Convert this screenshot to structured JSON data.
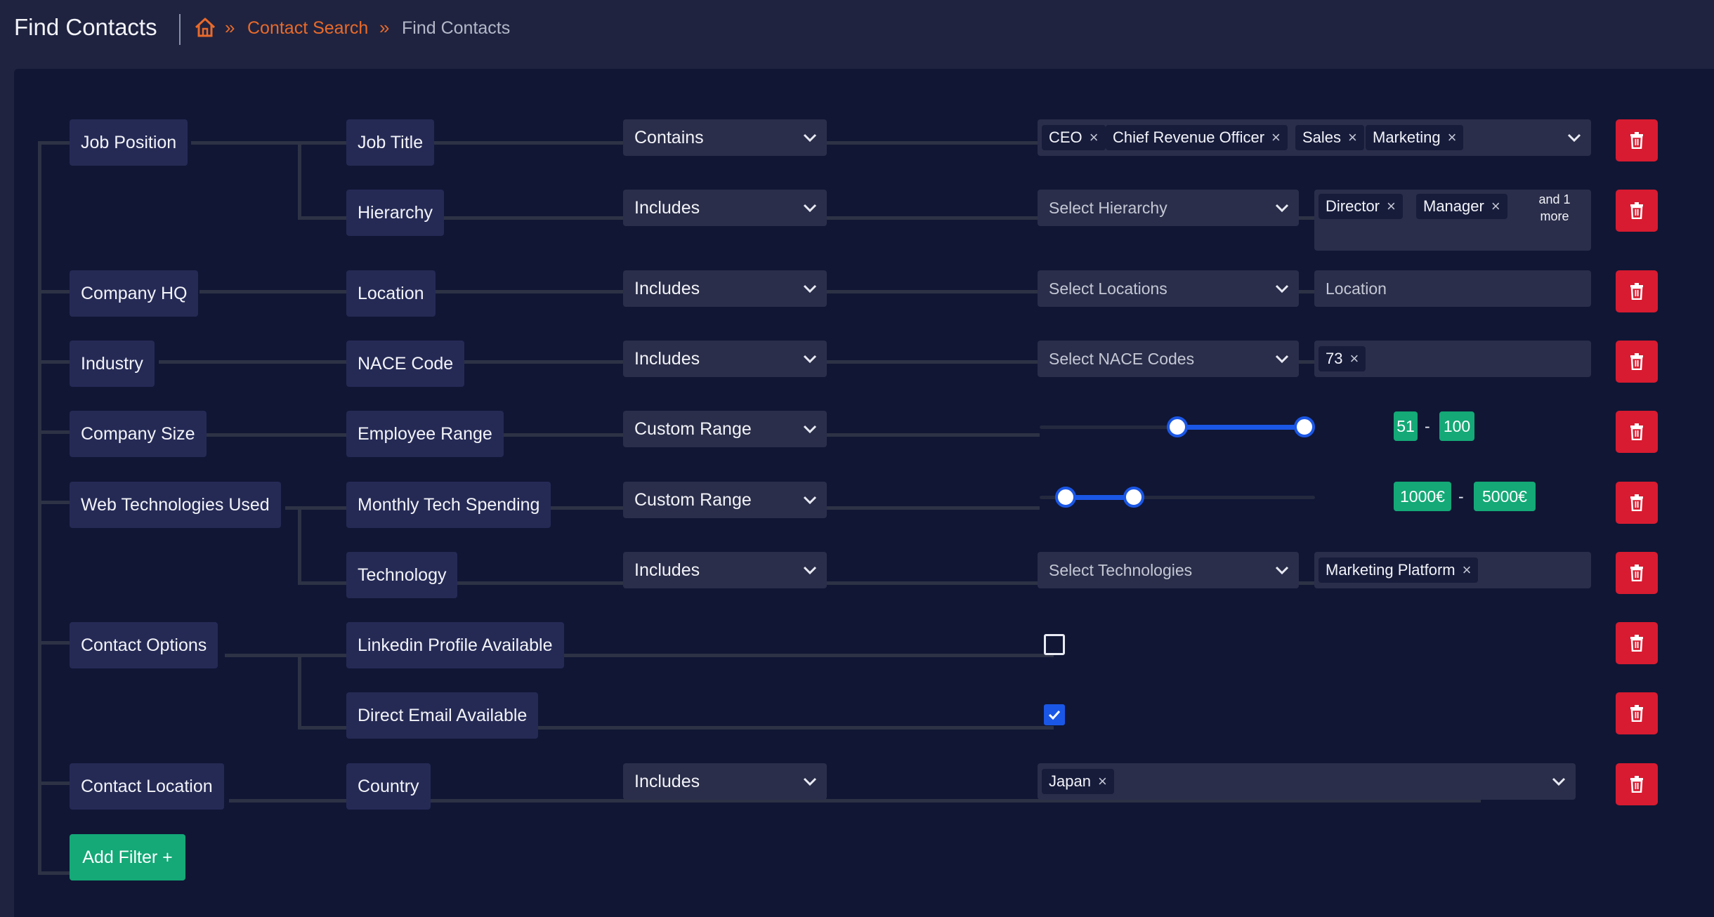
{
  "header": {
    "title": "Find Contacts",
    "breadcrumb": {
      "home_icon": "home-icon",
      "link": "Contact Search",
      "current": "Find Contacts",
      "separator": "»"
    }
  },
  "filters": {
    "job_position": {
      "label": "Job Position",
      "job_title": {
        "label": "Job Title",
        "operator": "Contains",
        "tags": [
          "CEO",
          "Chief Revenue Officer",
          "Sales",
          "Marketing"
        ]
      },
      "hierarchy": {
        "label": "Hierarchy",
        "operator": "Includes",
        "select_placeholder": "Select Hierarchy",
        "tags": [
          "Director",
          "Manager"
        ],
        "more_line1": "and 1",
        "more_line2": "more"
      }
    },
    "company_hq": {
      "label": "Company HQ",
      "location": {
        "label": "Location",
        "operator": "Includes",
        "select_placeholder": "Select Locations",
        "input_placeholder": "Location"
      }
    },
    "industry": {
      "label": "Industry",
      "nace": {
        "label": "NACE Code",
        "operator": "Includes",
        "select_placeholder": "Select NACE Codes",
        "tags": [
          "73"
        ]
      }
    },
    "company_size": {
      "label": "Company Size",
      "employee_range": {
        "label": "Employee Range",
        "operator": "Custom Range",
        "min": "51",
        "max": "100",
        "slider_low_fraction": 0.5,
        "slider_high_fraction": 1.0
      }
    },
    "web_tech": {
      "label": "Web Technologies Used",
      "spending": {
        "label": "Monthly Tech Spending",
        "operator": "Custom Range",
        "min": "1000€",
        "max": "5000€",
        "slider_low_fraction": 0.06,
        "slider_high_fraction": 0.33
      },
      "technology": {
        "label": "Technology",
        "operator": "Includes",
        "select_placeholder": "Select Technologies",
        "tags": [
          "Marketing Platform"
        ]
      }
    },
    "contact_options": {
      "label": "Contact Options",
      "linkedin": {
        "label": "Linkedin Profile Available",
        "checked": false
      },
      "direct_email": {
        "label": "Direct Email Available",
        "checked": true
      }
    },
    "contact_location": {
      "label": "Contact Location",
      "country": {
        "label": "Country",
        "operator": "Includes",
        "tags": [
          "Japan"
        ]
      }
    }
  },
  "actions": {
    "add_filter": "Add Filter +",
    "delete_icon": "trash-icon",
    "tag_remove_glyph": "×"
  },
  "colors": {
    "accent_orange": "#e96a2a",
    "delete_red": "#d81b30",
    "add_green": "#14a977",
    "slider_blue": "#1b57e6"
  }
}
